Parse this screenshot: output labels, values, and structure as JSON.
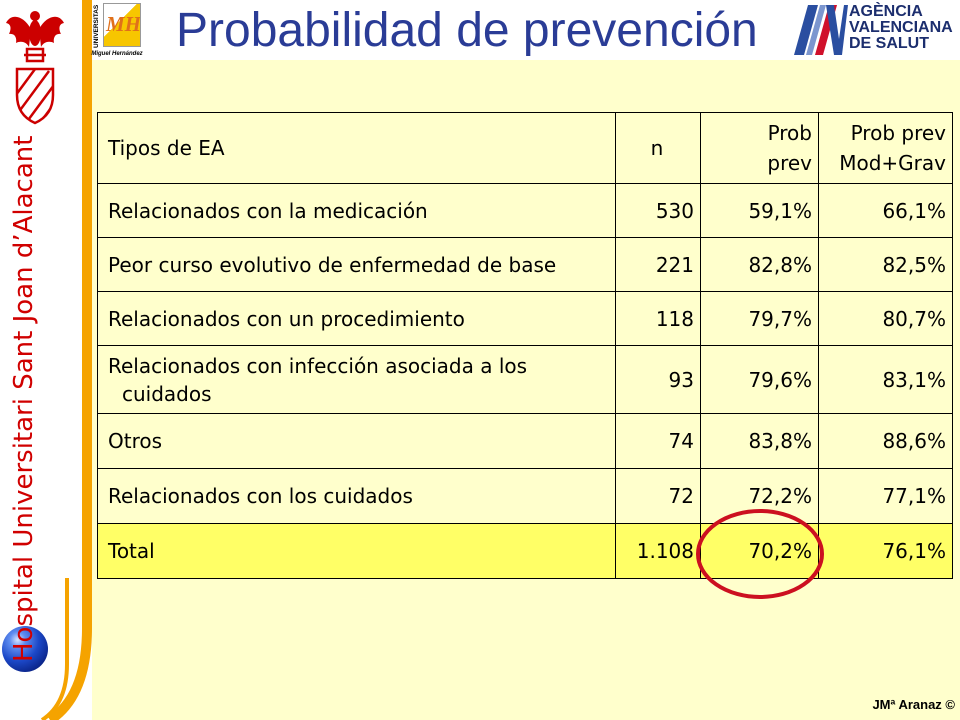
{
  "slide": {
    "title": "Probabilidad de prevención",
    "sidebar_text": "Hospital Universitari Sant Joan d’Alacant",
    "footer": "JMª Aranaz ©"
  },
  "logos": {
    "university": {
      "word": "UNIVERSITAS",
      "mark": "MH",
      "name": "Miguel Hernández"
    },
    "agency": {
      "lines": [
        "AGÈNCIA",
        "VALENCIANA",
        "DE SALUT"
      ]
    }
  },
  "icons": {
    "coat_of_arms": "valencian-coat-of-arms-icon",
    "agency_mark": "av-mark-icon",
    "sphere": "blue-sphere-icon"
  },
  "table": {
    "headers": {
      "type": "Tipos de EA",
      "n": "n",
      "prob_prev": [
        "Prob",
        "prev"
      ],
      "prob_prev_mod_grav": [
        "Prob prev",
        "Mod+Grav"
      ]
    },
    "rows": [
      {
        "type": "Relacionados con la medicación",
        "n": "530",
        "prob_prev": "59,1%",
        "prob_prev_mod_grav": "66,1%"
      },
      {
        "type": "Peor curso evolutivo de enfermedad de base",
        "n": "221",
        "prob_prev": "82,8%",
        "prob_prev_mod_grav": "82,5%"
      },
      {
        "type": "Relacionados con un procedimiento",
        "n": "118",
        "prob_prev": "79,7%",
        "prob_prev_mod_grav": "80,7%"
      },
      {
        "type": "Relacionados con infección asociada a los cuidados",
        "n": "93",
        "prob_prev": "79,6%",
        "prob_prev_mod_grav": "83,1%"
      },
      {
        "type": "Otros",
        "n": "74",
        "prob_prev": "83,8%",
        "prob_prev_mod_grav": "88,6%"
      },
      {
        "type": "Relacionados con los cuidados",
        "n": "72",
        "prob_prev": "72,2%",
        "prob_prev_mod_grav": "77,1%"
      }
    ],
    "total": {
      "type": "Total",
      "n": "1.108",
      "prob_prev": "70,2%",
      "prob_prev_mod_grav": "76,1%"
    }
  },
  "colors": {
    "title": "#2A3C96",
    "sidebar_text": "#D00000",
    "panel_background": "#FFFFCC",
    "total_row": "#FFFF66",
    "highlight_circle": "#CC1020",
    "accent_orange": "#F5A300",
    "agency_text": "#1C2E6E"
  }
}
